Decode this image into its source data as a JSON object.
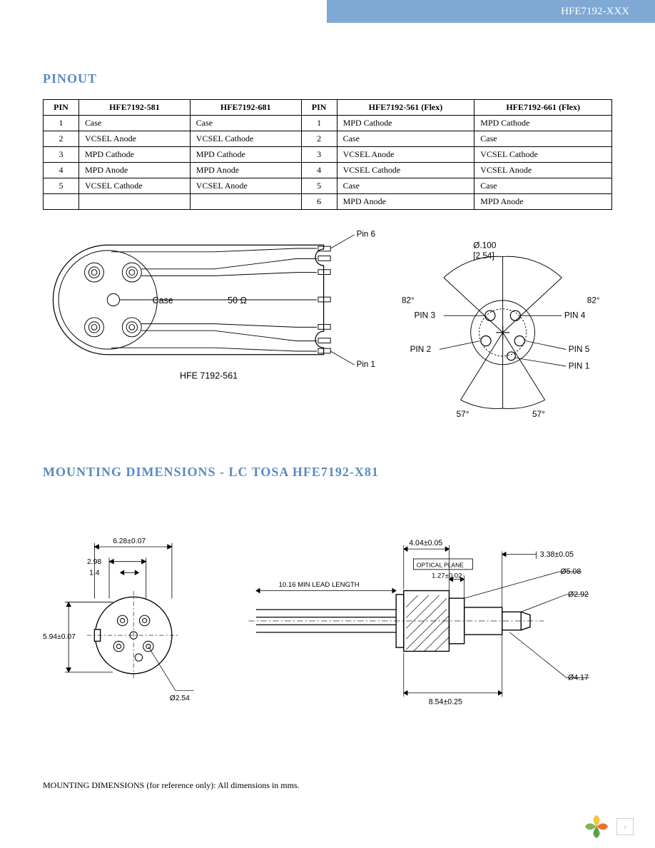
{
  "header": {
    "part_number": "HFE7192-XXX"
  },
  "pinout": {
    "title": "PINOUT",
    "columns_left": [
      "PIN",
      "HFE7192-581",
      "HFE7192-681"
    ],
    "columns_right": [
      "PIN",
      "HFE7192-561 (Flex)",
      "HFE7192-661 (Flex)"
    ],
    "rows": [
      {
        "pin_l": "1",
        "c581": "Case",
        "c681": "Case",
        "pin_r": "1",
        "c561": "MPD Cathode",
        "c661": "MPD Cathode"
      },
      {
        "pin_l": "2",
        "c581": "VCSEL Anode",
        "c681": "VCSEL Cathode",
        "pin_r": "2",
        "c561": "Case",
        "c661": "Case"
      },
      {
        "pin_l": "3",
        "c581": "MPD Cathode",
        "c681": "MPD Cathode",
        "pin_r": "3",
        "c561": "VCSEL Anode",
        "c661": "VCSEL Cathode"
      },
      {
        "pin_l": "4",
        "c581": "MPD Anode",
        "c681": "MPD Anode",
        "pin_r": "4",
        "c561": "VCSEL Cathode",
        "c661": "VCSEL Anode"
      },
      {
        "pin_l": "5",
        "c581": "VCSEL Cathode",
        "c681": "VCSEL Anode",
        "pin_r": "5",
        "c561": "Case",
        "c661": "Case"
      },
      {
        "pin_l": "",
        "c581": "",
        "c681": "",
        "pin_r": "6",
        "c561": "MPD Anode",
        "c661": "MPD Anode"
      }
    ]
  },
  "flex_diagram": {
    "case_label": "Case",
    "impedance_label": "50 Ω",
    "pin6_label": "Pin 6",
    "pin1_label": "Pin 1",
    "caption": "HFE 7192-561"
  },
  "pin_circle": {
    "diameter_label": "Ø.100",
    "diameter_mm": "[2.54]",
    "pin3": "PIN 3",
    "pin4": "PIN 4",
    "pin2": "PIN 2",
    "pin5": "PIN 5",
    "pin1": "PIN 1",
    "angle_82_l": "82°",
    "angle_82_r": "82°",
    "angle_57_l": "57°",
    "angle_57_r": "57°"
  },
  "mounting": {
    "title": "MOUNTING DIMENSIONS - LC TOSA HFE7192-X81",
    "front": {
      "dim_628": "6.28±0.07",
      "dim_298": "2.98",
      "dim_14": "1.4",
      "dim_594": "5.94±0.07",
      "dim_254": "Ø2.54"
    },
    "side": {
      "lead_length": "10.16 MIN LEAD LENGTH",
      "dim_404": "4.04±0.05",
      "optical_plane": "OPTICAL PLANE",
      "dim_127": "1.27±0.02",
      "dim_338": "3.38±0.05",
      "dim_508": "Ø5.08",
      "dim_292": "Ø2.92",
      "dim_417": "Ø4.17",
      "dim_854": "8.54±0.25"
    }
  },
  "footnote": "MOUNTING DIMENSIONS (for reference only):  All dimensions in mms.",
  "footer": {
    "page_indicator": "›"
  },
  "colors": {
    "header_bg": "#7fa8d4",
    "title_color": "#5a8ac0",
    "line_color": "#000000"
  }
}
